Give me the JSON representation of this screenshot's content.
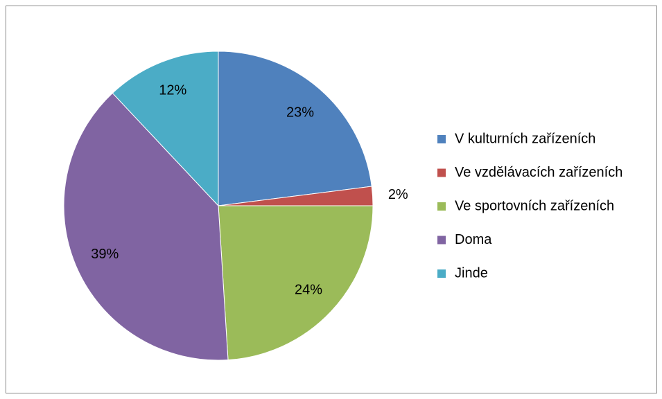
{
  "chart_data": {
    "type": "pie",
    "categories": [
      "V kulturních zařízeních",
      "Ve vzdělávacích zařízeních",
      "Ve sportovních zařízeních",
      "Doma",
      "Jinde"
    ],
    "values": [
      23,
      2,
      24,
      39,
      12
    ],
    "value_labels": [
      "23%",
      "2%",
      "24%",
      "39%",
      "12%"
    ],
    "colors": [
      "#4f81bd",
      "#c0504d",
      "#9bbb59",
      "#8064a2",
      "#4bacc6"
    ],
    "legend": "right"
  }
}
